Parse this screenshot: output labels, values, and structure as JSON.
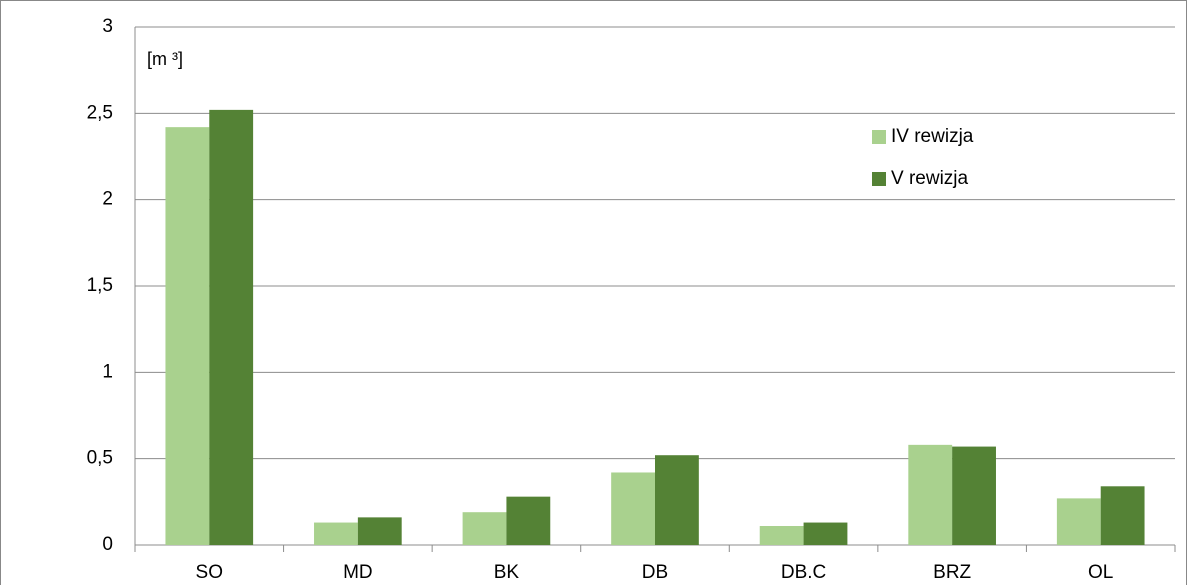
{
  "chart_data": {
    "type": "bar",
    "y_label": "[m ³]",
    "categories": [
      "SO",
      "MD",
      "BK",
      "DB",
      "DB.C",
      "BRZ",
      "OL"
    ],
    "series": [
      {
        "name": "IV rewizja",
        "color": "#a9d18e",
        "values": [
          2.42,
          0.13,
          0.19,
          0.42,
          0.11,
          0.58,
          0.27
        ]
      },
      {
        "name": "V rewizja",
        "color": "#548235",
        "values": [
          2.52,
          0.16,
          0.28,
          0.52,
          0.13,
          0.57,
          0.34
        ]
      }
    ],
    "ylim": [
      0,
      3
    ],
    "yticks": [
      0,
      {
        "value": 0.5,
        "label": "0,5"
      },
      1,
      {
        "value": 1.5,
        "label": "1,5"
      },
      2,
      {
        "value": 2.5,
        "label": "2,5"
      },
      3
    ],
    "grid": true
  }
}
